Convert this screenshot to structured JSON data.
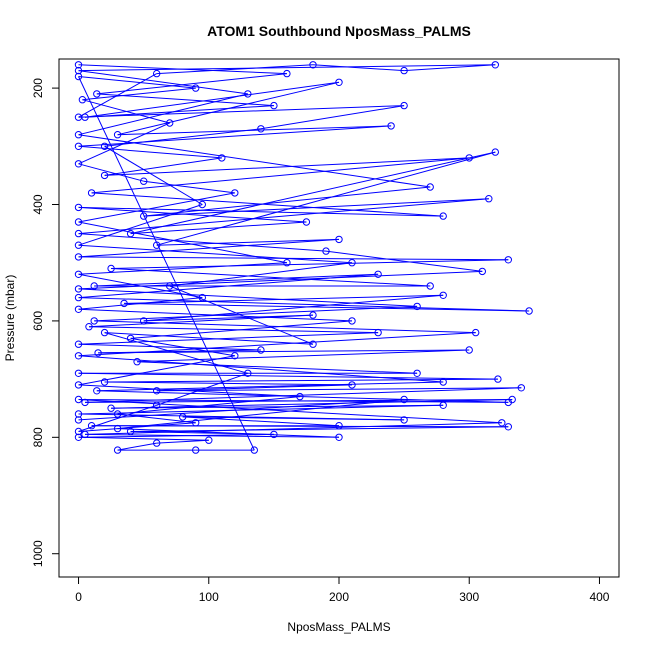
{
  "chart_data": {
    "type": "scatter",
    "title": "ATOM1 Southbound NposMass_PALMS",
    "xlabel": "NposMass_PALMS",
    "ylabel": "Pressure (mbar)",
    "xlim": [
      -15,
      415
    ],
    "ylim": [
      1040,
      150
    ],
    "y_reversed": true,
    "x_ticks": [
      0,
      100,
      200,
      300,
      400
    ],
    "y_ticks": [
      200,
      400,
      600,
      800,
      1000
    ],
    "grid": false,
    "legend": "none",
    "color": "#0000ff",
    "marker": "open-circle",
    "connected_by_lines": true,
    "series": [
      {
        "values_note": "",
        "points": [
          [
            0,
            160
          ],
          [
            160,
            175
          ],
          [
            14,
            210
          ],
          [
            150,
            230
          ],
          [
            5,
            250
          ],
          [
            200,
            190
          ],
          [
            30,
            280
          ],
          [
            240,
            265
          ],
          [
            0,
            300
          ],
          [
            110,
            320
          ],
          [
            20,
            350
          ],
          [
            300,
            320
          ],
          [
            10,
            380
          ],
          [
            280,
            420
          ],
          [
            0,
            405
          ],
          [
            175,
            430
          ],
          [
            40,
            450
          ],
          [
            320,
            310
          ],
          [
            60,
            470
          ],
          [
            200,
            460
          ],
          [
            0,
            490
          ],
          [
            330,
            495
          ],
          [
            25,
            510
          ],
          [
            270,
            540
          ],
          [
            12,
            540
          ],
          [
            230,
            520
          ],
          [
            0,
            560
          ],
          [
            346,
            583
          ],
          [
            35,
            570
          ],
          [
            280,
            556
          ],
          [
            50,
            600
          ],
          [
            180,
            590
          ],
          [
            8,
            610
          ],
          [
            230,
            620
          ],
          [
            0,
            640
          ],
          [
            140,
            650
          ],
          [
            15,
            655
          ],
          [
            300,
            650
          ],
          [
            45,
            670
          ],
          [
            260,
            690
          ],
          [
            0,
            690
          ],
          [
            322,
            700
          ],
          [
            20,
            705
          ],
          [
            210,
            710
          ],
          [
            60,
            720
          ],
          [
            340,
            715
          ],
          [
            5,
            740
          ],
          [
            333,
            735
          ],
          [
            25,
            750
          ],
          [
            280,
            745
          ],
          [
            0,
            760
          ],
          [
            250,
            770
          ],
          [
            80,
            765
          ],
          [
            200,
            780
          ],
          [
            10,
            780
          ],
          [
            330,
            782
          ],
          [
            40,
            790
          ],
          [
            150,
            795
          ],
          [
            0,
            800
          ],
          [
            100,
            805
          ],
          [
            60,
            810
          ],
          [
            30,
            822
          ],
          [
            90,
            822
          ],
          [
            135,
            822
          ],
          [
            0,
            180
          ],
          [
            90,
            200
          ],
          [
            3,
            220
          ],
          [
            70,
            260
          ],
          [
            0,
            330
          ],
          [
            50,
            360
          ],
          [
            120,
            380
          ],
          [
            0,
            430
          ],
          [
            160,
            500
          ],
          [
            0,
            520
          ],
          [
            95,
            560
          ],
          [
            0,
            580
          ],
          [
            210,
            600
          ],
          [
            40,
            630
          ],
          [
            120,
            660
          ],
          [
            0,
            710
          ],
          [
            170,
            730
          ],
          [
            30,
            760
          ],
          [
            90,
            775
          ],
          [
            0,
            790
          ],
          [
            60,
            745
          ],
          [
            130,
            690
          ],
          [
            20,
            620
          ],
          [
            180,
            640
          ],
          [
            70,
            540
          ],
          [
            210,
            500
          ],
          [
            0,
            470
          ],
          [
            95,
            400
          ],
          [
            20,
            300
          ],
          [
            140,
            270
          ],
          [
            250,
            230
          ],
          [
            0,
            250
          ],
          [
            60,
            175
          ],
          [
            180,
            160
          ],
          [
            250,
            170
          ],
          [
            320,
            160
          ],
          [
            0,
            170
          ],
          [
            130,
            210
          ],
          [
            0,
            280
          ],
          [
            270,
            370
          ],
          [
            50,
            420
          ],
          [
            315,
            390
          ],
          [
            0,
            450
          ],
          [
            190,
            480
          ],
          [
            310,
            515
          ],
          [
            0,
            545
          ],
          [
            260,
            575
          ],
          [
            12,
            600
          ],
          [
            305,
            620
          ],
          [
            0,
            660
          ],
          [
            280,
            705
          ],
          [
            14,
            720
          ],
          [
            330,
            740
          ],
          [
            0,
            735
          ],
          [
            325,
            775
          ],
          [
            5,
            795
          ],
          [
            200,
            800
          ],
          [
            30,
            785
          ],
          [
            250,
            735
          ],
          [
            0,
            770
          ]
        ]
      }
    ]
  }
}
